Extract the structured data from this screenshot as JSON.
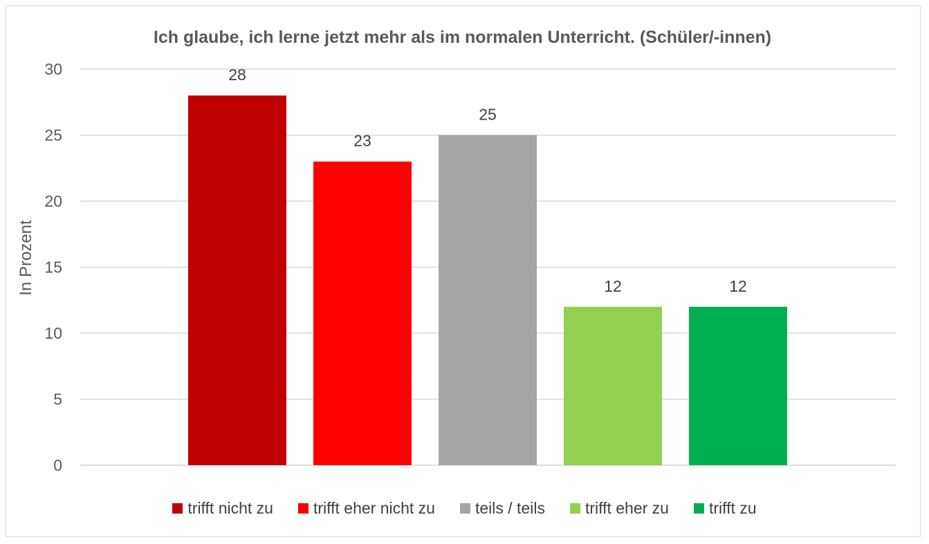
{
  "chart_data": {
    "type": "bar",
    "title": "Ich glaube, ich lerne jetzt mehr als im normalen Unterricht. (Schüler/-innen)",
    "xlabel": "",
    "ylabel": "In Prozent",
    "ylim": [
      0,
      30
    ],
    "yticks": [
      0,
      5,
      10,
      15,
      20,
      25,
      30
    ],
    "grid": true,
    "legend_position": "bottom",
    "categories": [
      "trifft nicht zu",
      "trifft eher nicht zu",
      "teils / teils",
      "trifft eher zu",
      "trifft zu"
    ],
    "values": [
      28,
      23,
      25,
      12,
      12
    ],
    "colors": [
      "#c00000",
      "#ff0000",
      "#a5a5a5",
      "#92d050",
      "#00b050"
    ],
    "data_labels": [
      "28",
      "23",
      "25",
      "12",
      "12"
    ]
  }
}
